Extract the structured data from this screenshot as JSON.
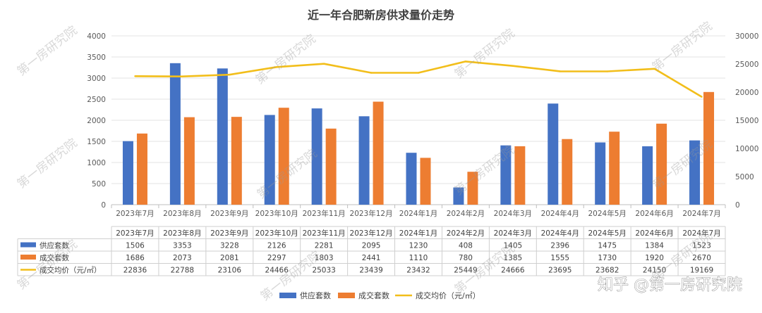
{
  "chart_data": {
    "type": "bar",
    "title": "近一年合肥新房供求量价走势",
    "categories": [
      "2023年7月",
      "2023年8月",
      "2023年9月",
      "2023年10月",
      "2023年11月",
      "2023年12月",
      "2024年1月",
      "2024年2月",
      "2024年3月",
      "2024年4月",
      "2024年5月",
      "2024年6月",
      "2024年7月"
    ],
    "series": [
      {
        "name": "供应套数",
        "type": "bar",
        "axis": "left",
        "color": "#4472C4",
        "values": [
          1506,
          3353,
          3228,
          2126,
          2281,
          2095,
          1230,
          408,
          1405,
          2396,
          1475,
          1384,
          1523
        ]
      },
      {
        "name": "成交套数",
        "type": "bar",
        "axis": "left",
        "color": "#ED7D31",
        "values": [
          1686,
          2073,
          2081,
          2297,
          1803,
          2441,
          1110,
          780,
          1385,
          1555,
          1730,
          1920,
          2670
        ]
      },
      {
        "name": "成交均价（元/㎡）",
        "type": "line",
        "axis": "right",
        "color": "#F2BE1A",
        "values": [
          22836,
          22788,
          23106,
          24466,
          25033,
          23439,
          23432,
          25449,
          24666,
          23695,
          23682,
          24150,
          19169
        ]
      }
    ],
    "legend_line_label": "成交均价（元/㎡）",
    "yticks_left": [
      "4000",
      "3500",
      "3000",
      "2500",
      "2000",
      "1500",
      "1000",
      "500",
      "0"
    ],
    "yticks_right": [
      "30000",
      "25000",
      "20000",
      "15000",
      "10000",
      "5000",
      "0"
    ],
    "ylim_left": [
      0,
      4000
    ],
    "ylim_right": [
      0,
      30000
    ],
    "table": {
      "row_labels": [
        "供应套数",
        "成交套数",
        "成交均价（元/㎡）"
      ],
      "rows": [
        [
          "1506",
          "3353",
          "3228",
          "2126",
          "2281",
          "2095",
          "1230",
          "408",
          "1405",
          "2396",
          "1475",
          "1384",
          "1523"
        ],
        [
          "1686",
          "2073",
          "2081",
          "2297",
          "1803",
          "2441",
          "1110",
          "780",
          "1385",
          "1555",
          "1730",
          "1920",
          "2670"
        ],
        [
          "22836",
          "22788",
          "23106",
          "24466",
          "25033",
          "23439",
          "23432",
          "25449",
          "24666",
          "23695",
          "23682",
          "24150",
          "19169"
        ]
      ]
    },
    "legend_position": "bottom",
    "grid": true
  },
  "watermark": "第一房研究院",
  "brand_text": "知乎 @第一房研究院"
}
